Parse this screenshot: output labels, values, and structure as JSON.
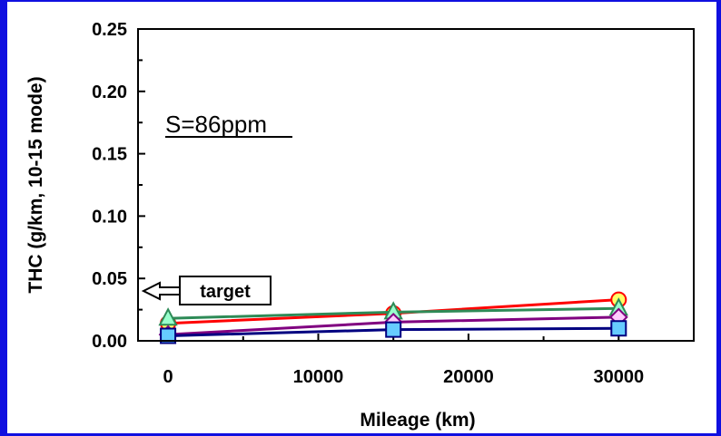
{
  "colors": {
    "background": "#1010e0",
    "panel": "#ffffff"
  },
  "chart_data": {
    "type": "line",
    "title": "",
    "xlabel": "Mileage (km)",
    "ylabel": "THC (g/km, 10-15 mode)",
    "xlim": [
      -2000,
      35000
    ],
    "ylim": [
      0,
      0.25
    ],
    "x_ticks": [
      0,
      10000,
      20000,
      30000
    ],
    "x_tick_labels": [
      "0",
      "10000",
      "20000",
      "30000"
    ],
    "y_ticks": [
      0,
      0.05,
      0.1,
      0.15,
      0.2,
      0.25
    ],
    "y_tick_labels": [
      "0.00",
      "0.05",
      "0.10",
      "0.15",
      "0.20",
      "0.25"
    ],
    "grid": false,
    "legend": "none",
    "annotation": "S=86ppm",
    "target": {
      "label": "target",
      "value": 0.04
    },
    "series": [
      {
        "color": "#ff0000",
        "fill": "#ffff66",
        "marker": "circle",
        "x": [
          0,
          15000,
          30000
        ],
        "y": [
          0.014,
          0.022,
          0.033
        ]
      },
      {
        "color": "#2e8b57",
        "fill": "#99ffcc",
        "marker": "triangle",
        "x": [
          0,
          15000,
          30000
        ],
        "y": [
          0.018,
          0.023,
          0.026
        ]
      },
      {
        "color": "#800080",
        "fill": "#ffccff",
        "marker": "diamond",
        "x": [
          0,
          15000,
          30000
        ],
        "y": [
          0.005,
          0.015,
          0.019
        ]
      },
      {
        "color": "#000080",
        "fill": "#66ccff",
        "marker": "square",
        "x": [
          0,
          15000,
          30000
        ],
        "y": [
          0.004,
          0.009,
          0.01
        ]
      }
    ]
  }
}
